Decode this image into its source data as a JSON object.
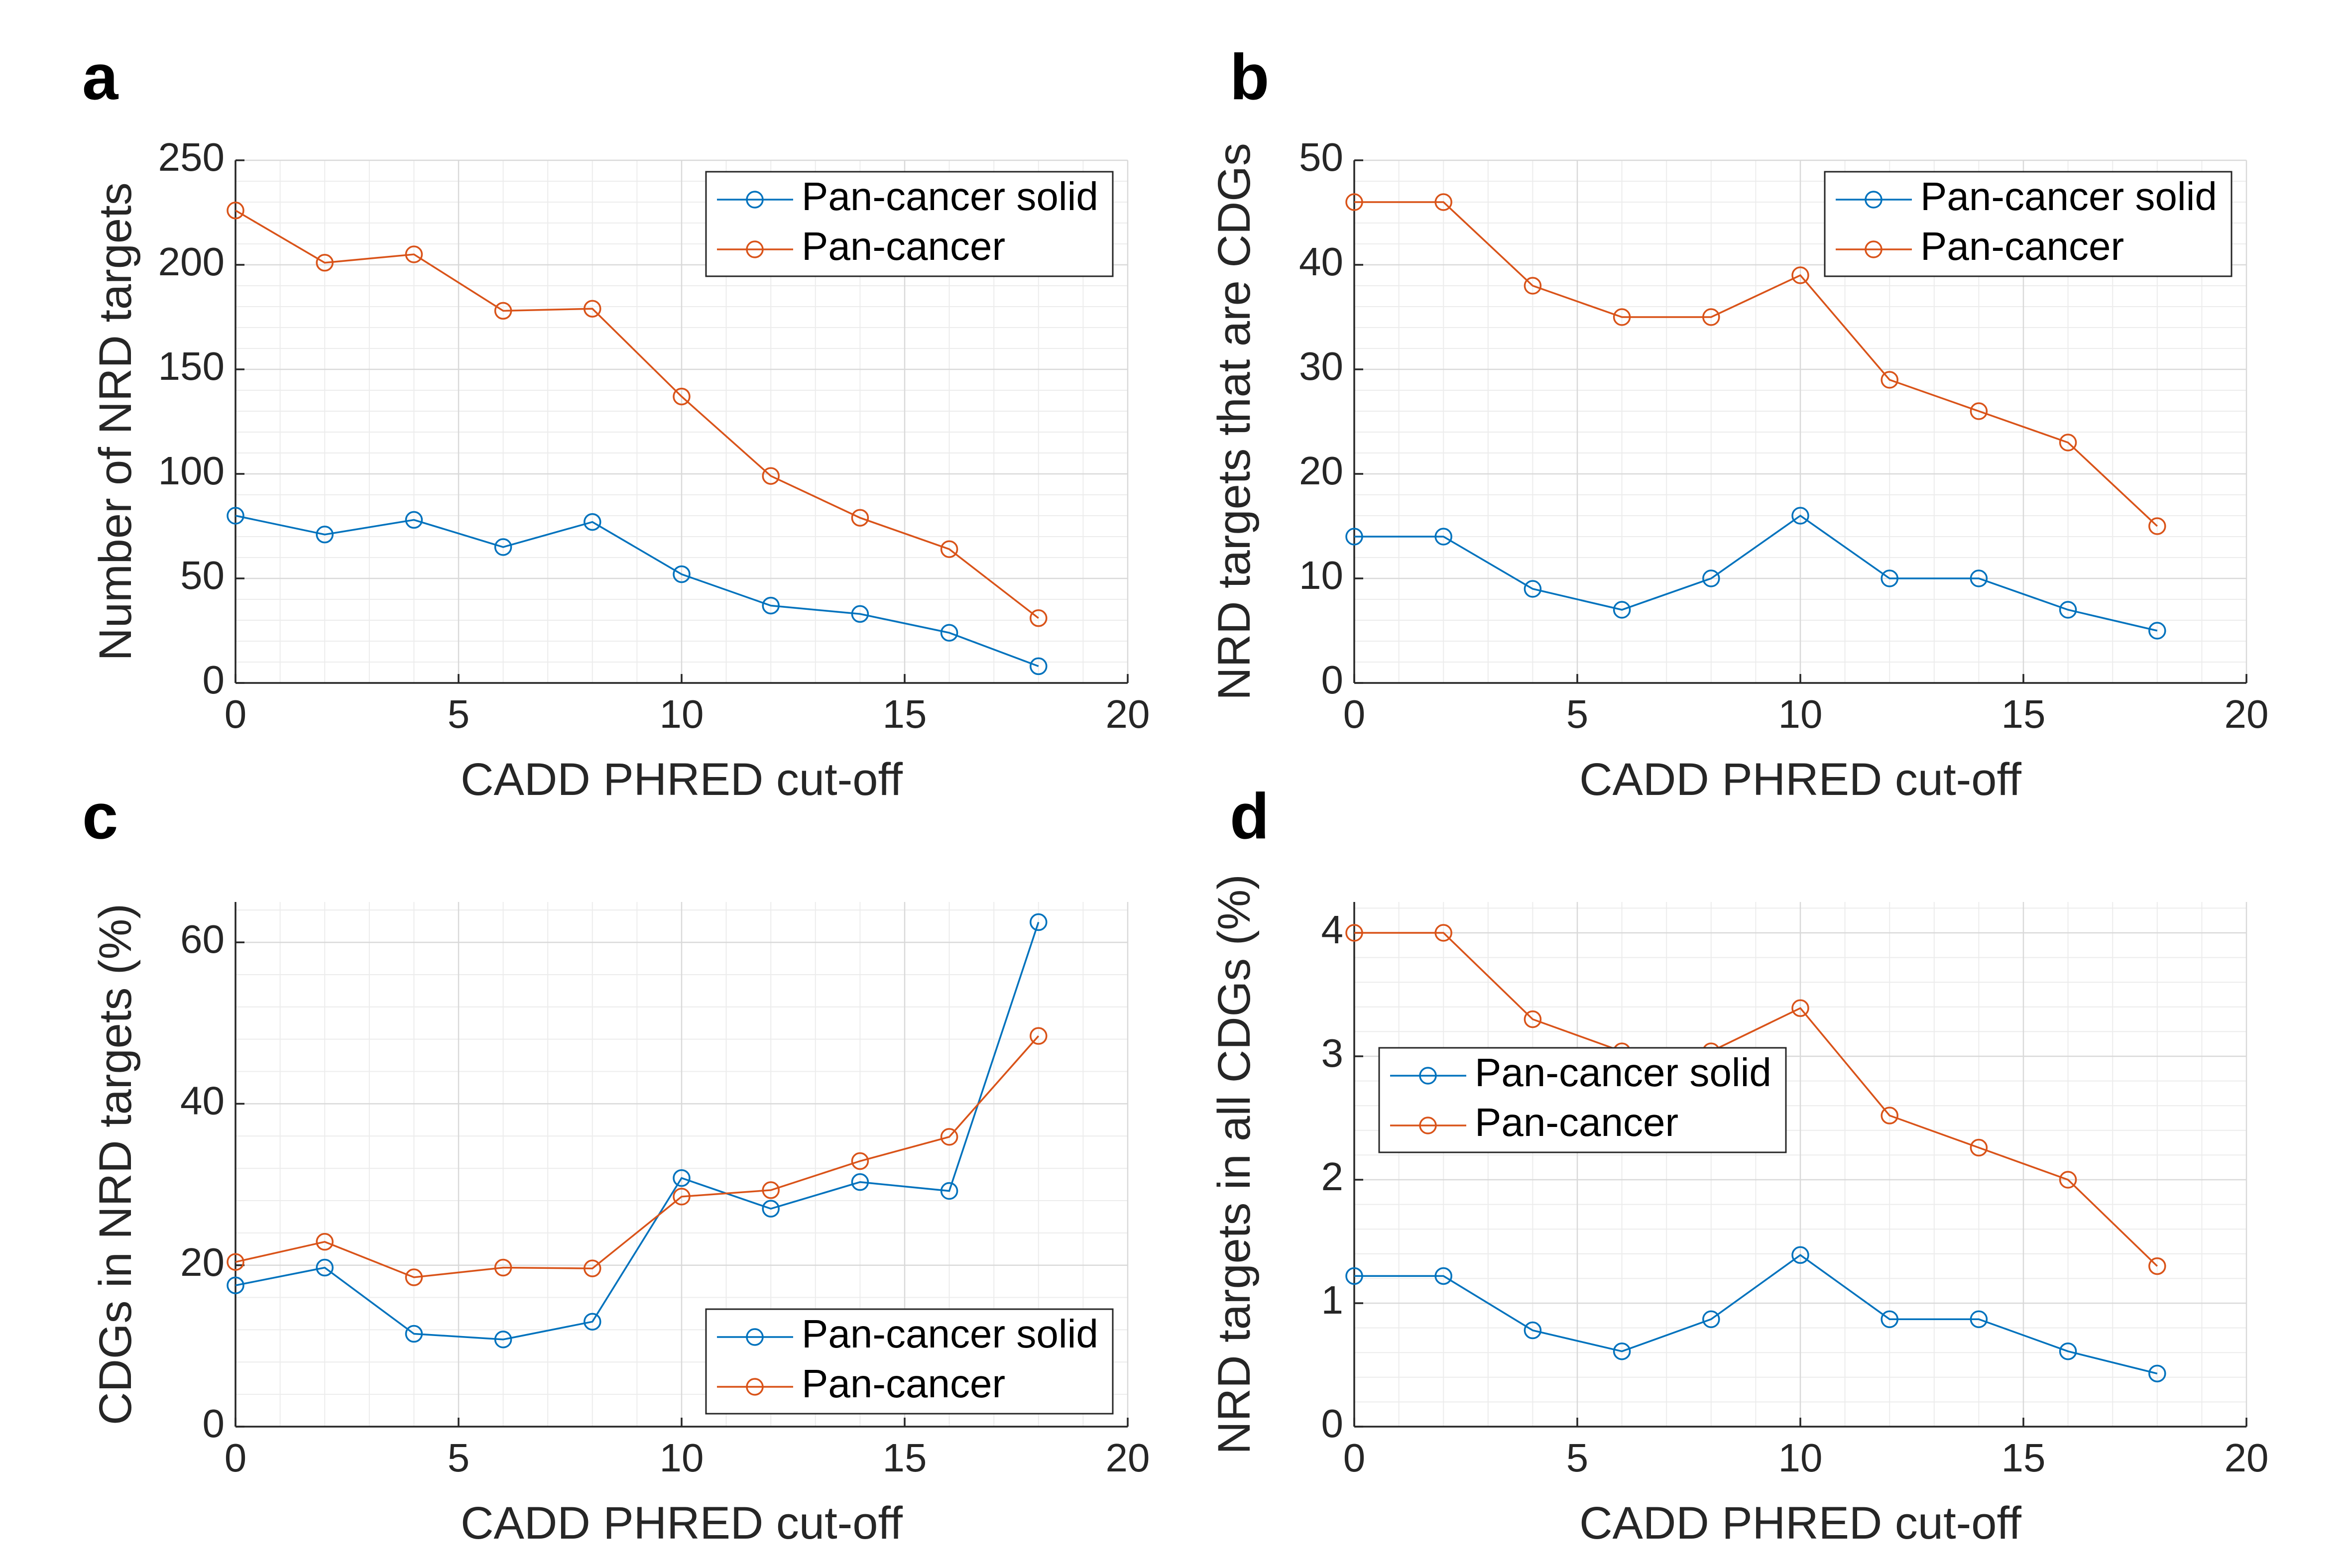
{
  "colors": {
    "series1": "#0072BD",
    "series2": "#D95319"
  },
  "chart_data": [
    {
      "type": "line",
      "panel_letter": "a",
      "xlabel": "CADD PHRED cut-off",
      "ylabel": "Number of NRD targets",
      "xlim": [
        0,
        20
      ],
      "ylim": [
        0,
        250
      ],
      "xticks": [
        0,
        5,
        10,
        15,
        20
      ],
      "yticks": [
        0,
        50,
        100,
        150,
        200,
        250
      ],
      "xtick_labels": [
        "0",
        "5",
        "10",
        "15",
        "20"
      ],
      "ytick_labels": [
        "0",
        "50",
        "100",
        "150",
        "200",
        "250"
      ],
      "grid": true,
      "legend_position": "top-right",
      "x": [
        0,
        2,
        4,
        6,
        8,
        10,
        12,
        14,
        16,
        18
      ],
      "series": [
        {
          "name": "Pan-cancer solid",
          "values": [
            80,
            71,
            78,
            65,
            77,
            52,
            37,
            33,
            24,
            8
          ]
        },
        {
          "name": "Pan-cancer",
          "values": [
            226,
            201,
            205,
            178,
            179,
            137,
            99,
            79,
            64,
            31
          ]
        }
      ]
    },
    {
      "type": "line",
      "panel_letter": "b",
      "xlabel": "CADD PHRED cut-off",
      "ylabel": "NRD targets that are CDGs",
      "xlim": [
        0,
        20
      ],
      "ylim": [
        0,
        50
      ],
      "xticks": [
        0,
        5,
        10,
        15,
        20
      ],
      "yticks": [
        0,
        10,
        20,
        30,
        40,
        50
      ],
      "xtick_labels": [
        "0",
        "5",
        "10",
        "15",
        "20"
      ],
      "ytick_labels": [
        "0",
        "10",
        "20",
        "30",
        "40",
        "50"
      ],
      "grid": true,
      "legend_position": "top-right",
      "x": [
        0,
        2,
        4,
        6,
        8,
        10,
        12,
        14,
        16,
        18
      ],
      "series": [
        {
          "name": "Pan-cancer solid",
          "values": [
            14,
            14,
            9,
            7,
            10,
            16,
            10,
            10,
            7,
            5
          ]
        },
        {
          "name": "Pan-cancer",
          "values": [
            46,
            46,
            38,
            35,
            35,
            39,
            29,
            26,
            23,
            15
          ]
        }
      ]
    },
    {
      "type": "line",
      "panel_letter": "c",
      "xlabel": "CADD PHRED cut-off",
      "ylabel": "CDGs in NRD targets (%)",
      "xlim": [
        0,
        20
      ],
      "ylim": [
        0,
        65
      ],
      "xticks": [
        0,
        5,
        10,
        15,
        20
      ],
      "yticks": [
        0,
        20,
        40,
        60
      ],
      "xtick_labels": [
        "0",
        "5",
        "10",
        "15",
        "20"
      ],
      "ytick_labels": [
        "0",
        "20",
        "40",
        "60"
      ],
      "grid": true,
      "legend_position": "bottom-right",
      "x": [
        0,
        2,
        4,
        6,
        8,
        10,
        12,
        14,
        16,
        18
      ],
      "series": [
        {
          "name": "Pan-cancer solid",
          "values": [
            17.5,
            19.7,
            11.5,
            10.8,
            13.0,
            30.8,
            27.0,
            30.3,
            29.2,
            62.5
          ]
        },
        {
          "name": "Pan-cancer",
          "values": [
            20.4,
            22.9,
            18.5,
            19.7,
            19.6,
            28.5,
            29.3,
            32.9,
            35.9,
            48.4
          ]
        }
      ]
    },
    {
      "type": "line",
      "panel_letter": "d",
      "xlabel": "CADD PHRED cut-off",
      "ylabel": "NRD targets in all CDGs (%)",
      "xlim": [
        0,
        20
      ],
      "ylim": [
        0,
        4.25
      ],
      "xticks": [
        0,
        5,
        10,
        15,
        20
      ],
      "yticks": [
        0,
        1,
        2,
        3,
        4
      ],
      "xtick_labels": [
        "0",
        "5",
        "10",
        "15",
        "20"
      ],
      "ytick_labels": [
        "0",
        "1",
        "2",
        "3",
        "4"
      ],
      "grid": true,
      "legend_position": "center-left",
      "x": [
        0,
        2,
        4,
        6,
        8,
        10,
        12,
        14,
        16,
        18
      ],
      "series": [
        {
          "name": "Pan-cancer solid",
          "values": [
            1.22,
            1.22,
            0.78,
            0.61,
            0.87,
            1.39,
            0.87,
            0.87,
            0.61,
            0.43
          ]
        },
        {
          "name": "Pan-cancer",
          "values": [
            4.0,
            4.0,
            3.3,
            3.04,
            3.04,
            3.39,
            2.52,
            2.26,
            2.0,
            1.3
          ]
        }
      ]
    }
  ]
}
